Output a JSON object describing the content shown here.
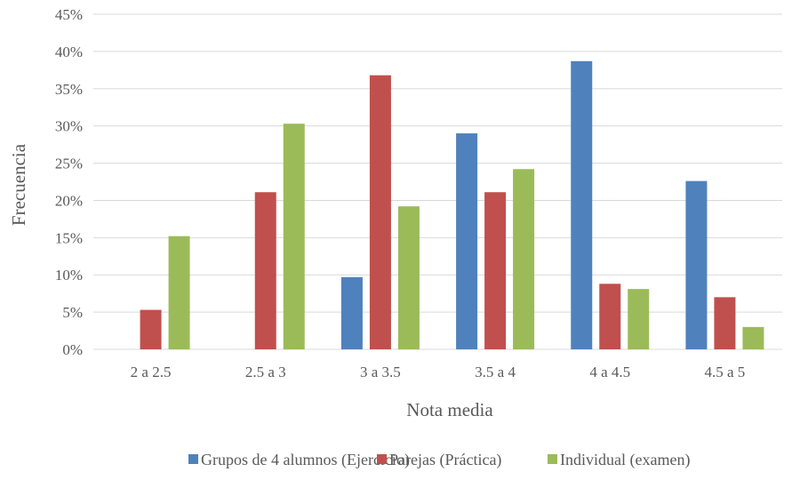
{
  "chart_data": {
    "type": "bar",
    "categories": [
      "2 a 2.5",
      "2.5 a 3",
      "3 a 3.5",
      "3.5 a 4",
      "4 a 4.5",
      "4.5 a 5"
    ],
    "series": [
      {
        "name": "Grupos de 4 alumnos (Ejercicio)",
        "color": "#4f81bd",
        "values": [
          0,
          0,
          9.7,
          29.0,
          38.7,
          22.6
        ]
      },
      {
        "name": "Parejas (Práctica)",
        "color": "#c0504d",
        "values": [
          5.3,
          21.1,
          36.8,
          21.1,
          8.8,
          7.0
        ]
      },
      {
        "name": "Individual (examen)",
        "color": "#9bbb59",
        "values": [
          15.2,
          30.3,
          19.2,
          24.2,
          8.1,
          3.0
        ]
      }
    ],
    "ylim": [
      0,
      45
    ],
    "ytick_labels": [
      "0%",
      "5%",
      "10%",
      "15%",
      "20%",
      "25%",
      "30%",
      "35%",
      "40%",
      "45%"
    ],
    "xlabel": "Nota media",
    "ylabel": "Frecuencia",
    "grid": true,
    "legend_position": "bottom"
  }
}
